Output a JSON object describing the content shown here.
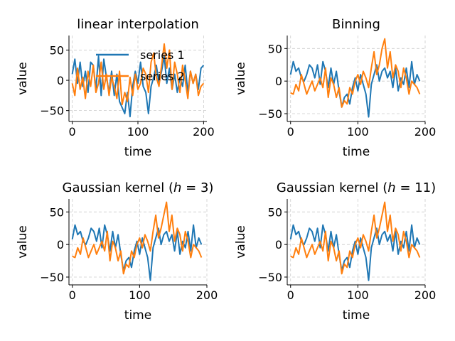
{
  "chart_data": [
    {
      "type": "line",
      "title": "linear interpolation",
      "xlabel": "time",
      "ylabel": "value",
      "xlim": [
        -5,
        205
      ],
      "ylim": [
        -68,
        74
      ],
      "xticks": [
        0,
        100,
        200
      ],
      "yticks": [
        -50,
        0,
        50
      ],
      "grid": true,
      "legend": "top-center",
      "colors": [
        "#1f77b4",
        "#ff7f0e"
      ],
      "series": [
        {
          "name": "series 1",
          "x": [
            0,
            4,
            8,
            12,
            16,
            20,
            24,
            28,
            32,
            36,
            40,
            44,
            48,
            52,
            56,
            60,
            64,
            68,
            72,
            76,
            80,
            84,
            88,
            92,
            96,
            100,
            104,
            108,
            112,
            116,
            120,
            124,
            128,
            132,
            136,
            140,
            144,
            148,
            152,
            156,
            160,
            164,
            168,
            172,
            176,
            180,
            184,
            188,
            192,
            196,
            200
          ],
          "values": [
            10,
            35,
            -5,
            30,
            -10,
            15,
            -20,
            30,
            25,
            -15,
            40,
            -25,
            35,
            5,
            -20,
            15,
            -25,
            10,
            -35,
            -45,
            -55,
            -20,
            -60,
            -10,
            15,
            -5,
            30,
            -10,
            -20,
            -55,
            -10,
            5,
            25,
            -5,
            15,
            40,
            -5,
            20,
            -15,
            10,
            -20,
            5,
            -10,
            25,
            -20,
            15,
            -5,
            10,
            -15,
            20,
            25
          ]
        },
        {
          "name": "series 2",
          "x": [
            0,
            4,
            8,
            12,
            16,
            20,
            24,
            28,
            32,
            36,
            40,
            44,
            48,
            52,
            56,
            60,
            64,
            68,
            72,
            76,
            80,
            84,
            88,
            92,
            96,
            100,
            104,
            108,
            112,
            116,
            120,
            124,
            128,
            132,
            136,
            140,
            144,
            148,
            152,
            156,
            160,
            164,
            168,
            172,
            176,
            180,
            184,
            188,
            192,
            196,
            200
          ],
          "values": [
            -5,
            -25,
            20,
            -15,
            5,
            -30,
            15,
            -10,
            25,
            -20,
            -5,
            30,
            -15,
            10,
            -25,
            5,
            -10,
            -30,
            15,
            -40,
            -20,
            -35,
            5,
            -25,
            10,
            -15,
            -5,
            20,
            10,
            -20,
            30,
            45,
            5,
            -10,
            25,
            60,
            20,
            50,
            -15,
            30,
            10,
            -20,
            25,
            0,
            -30,
            15,
            -5,
            10,
            -25,
            -10,
            -5
          ]
        }
      ]
    },
    {
      "type": "line",
      "title": "Binning",
      "xlabel": "time",
      "ylabel": "value",
      "xlim": [
        -5,
        200
      ],
      "ylim": [
        -62,
        70
      ],
      "xticks": [
        0,
        100,
        200
      ],
      "yticks": [
        -50,
        0,
        50
      ],
      "grid": true,
      "colors": [
        "#1f77b4",
        "#ff7f0e"
      ],
      "series": [
        {
          "x": [
            0,
            4,
            8,
            12,
            16,
            20,
            24,
            28,
            32,
            36,
            40,
            44,
            48,
            52,
            56,
            60,
            64,
            68,
            72,
            76,
            80,
            84,
            88,
            92,
            96,
            100,
            104,
            108,
            112,
            116,
            120,
            124,
            128,
            132,
            136,
            140,
            144,
            148,
            152,
            156,
            160,
            164,
            168,
            172,
            176,
            180,
            184,
            188,
            192
          ],
          "values": [
            10,
            30,
            15,
            20,
            5,
            0,
            10,
            25,
            20,
            5,
            25,
            -5,
            30,
            15,
            -10,
            20,
            -5,
            15,
            -15,
            -40,
            -25,
            -20,
            -35,
            -10,
            5,
            -15,
            10,
            -5,
            -20,
            -55,
            -5,
            10,
            25,
            0,
            15,
            20,
            5,
            15,
            -10,
            20,
            -15,
            5,
            -5,
            20,
            -10,
            30,
            -5,
            10,
            0
          ]
        },
        {
          "x": [
            0,
            4,
            8,
            12,
            16,
            20,
            24,
            28,
            32,
            36,
            40,
            44,
            48,
            52,
            56,
            60,
            64,
            68,
            72,
            76,
            80,
            84,
            88,
            92,
            96,
            100,
            104,
            108,
            112,
            116,
            120,
            124,
            128,
            132,
            136,
            140,
            144,
            148,
            152,
            156,
            160,
            164,
            168,
            172,
            176,
            180,
            184,
            188,
            192
          ],
          "values": [
            -18,
            -20,
            -5,
            -15,
            10,
            -5,
            -20,
            -10,
            0,
            -15,
            -5,
            5,
            -10,
            20,
            -25,
            5,
            -5,
            -25,
            -10,
            -40,
            -30,
            -35,
            -10,
            -20,
            0,
            10,
            -5,
            15,
            5,
            -10,
            20,
            45,
            10,
            25,
            50,
            65,
            20,
            45,
            5,
            25,
            15,
            -10,
            20,
            5,
            -20,
            0,
            -5,
            -10,
            -20
          ]
        }
      ]
    },
    {
      "type": "line",
      "title": "Gaussian kernel ($h=3$)",
      "xlabel": "time",
      "ylabel": "value",
      "xlim": [
        -5,
        200
      ],
      "ylim": [
        -62,
        70
      ],
      "xticks": [
        0,
        100,
        200
      ],
      "yticks": [
        -50,
        0,
        50
      ],
      "grid": true,
      "colors": [
        "#1f77b4",
        "#ff7f0e"
      ],
      "series": [
        {
          "x": [
            0,
            4,
            8,
            12,
            16,
            20,
            24,
            28,
            32,
            36,
            40,
            44,
            48,
            52,
            56,
            60,
            64,
            68,
            72,
            76,
            80,
            84,
            88,
            92,
            96,
            100,
            104,
            108,
            112,
            116,
            120,
            124,
            128,
            132,
            136,
            140,
            144,
            148,
            152,
            156,
            160,
            164,
            168,
            172,
            176,
            180,
            184,
            188,
            192
          ],
          "values": [
            8,
            30,
            15,
            20,
            5,
            0,
            10,
            25,
            20,
            5,
            25,
            -5,
            30,
            15,
            -10,
            20,
            -5,
            15,
            -15,
            -40,
            -25,
            -20,
            -35,
            -10,
            5,
            -15,
            10,
            -5,
            -20,
            -55,
            -5,
            10,
            25,
            0,
            15,
            20,
            5,
            15,
            -10,
            20,
            -15,
            5,
            -5,
            20,
            -10,
            30,
            -5,
            10,
            0
          ]
        },
        {
          "x": [
            0,
            4,
            8,
            12,
            16,
            20,
            24,
            28,
            32,
            36,
            40,
            44,
            48,
            52,
            56,
            60,
            64,
            68,
            72,
            76,
            80,
            84,
            88,
            92,
            96,
            100,
            104,
            108,
            112,
            116,
            120,
            124,
            128,
            132,
            136,
            140,
            144,
            148,
            152,
            156,
            160,
            164,
            168,
            172,
            176,
            180,
            184,
            188,
            192
          ],
          "values": [
            -18,
            -20,
            -5,
            -15,
            10,
            -5,
            -20,
            -10,
            0,
            -15,
            -5,
            5,
            -10,
            20,
            -25,
            5,
            -5,
            -25,
            -10,
            -45,
            -30,
            -35,
            -10,
            -20,
            0,
            10,
            -5,
            15,
            5,
            -10,
            20,
            45,
            10,
            25,
            45,
            65,
            20,
            45,
            5,
            25,
            15,
            -10,
            20,
            5,
            -20,
            0,
            -5,
            -10,
            -20
          ]
        }
      ]
    },
    {
      "type": "line",
      "title": "Gaussian kernel ($h=11$)",
      "xlabel": "time",
      "ylabel": "value",
      "xlim": [
        -5,
        200
      ],
      "ylim": [
        -62,
        70
      ],
      "xticks": [
        0,
        100,
        200
      ],
      "yticks": [
        -50,
        0,
        50
      ],
      "grid": true,
      "colors": [
        "#1f77b4",
        "#ff7f0e"
      ],
      "series": [
        {
          "x": [
            0,
            4,
            8,
            12,
            16,
            20,
            24,
            28,
            32,
            36,
            40,
            44,
            48,
            52,
            56,
            60,
            64,
            68,
            72,
            76,
            80,
            84,
            88,
            92,
            96,
            100,
            104,
            108,
            112,
            116,
            120,
            124,
            128,
            132,
            136,
            140,
            144,
            148,
            152,
            156,
            160,
            164,
            168,
            172,
            176,
            180,
            184,
            188,
            192
          ],
          "values": [
            8,
            30,
            15,
            20,
            5,
            0,
            10,
            25,
            20,
            5,
            25,
            -5,
            30,
            15,
            -10,
            20,
            -5,
            15,
            -15,
            -40,
            -25,
            -20,
            -35,
            -10,
            5,
            -15,
            10,
            -5,
            -20,
            -55,
            -5,
            10,
            25,
            0,
            15,
            20,
            5,
            15,
            -10,
            20,
            -15,
            5,
            -5,
            20,
            -10,
            30,
            -5,
            10,
            0
          ]
        },
        {
          "x": [
            0,
            4,
            8,
            12,
            16,
            20,
            24,
            28,
            32,
            36,
            40,
            44,
            48,
            52,
            56,
            60,
            64,
            68,
            72,
            76,
            80,
            84,
            88,
            92,
            96,
            100,
            104,
            108,
            112,
            116,
            120,
            124,
            128,
            132,
            136,
            140,
            144,
            148,
            152,
            156,
            160,
            164,
            168,
            172,
            176,
            180,
            184,
            188,
            192
          ],
          "values": [
            -18,
            -20,
            -5,
            -15,
            10,
            -5,
            -20,
            -10,
            0,
            -15,
            -5,
            5,
            -10,
            20,
            -25,
            5,
            -5,
            -25,
            -10,
            -45,
            -30,
            -35,
            -10,
            -20,
            0,
            10,
            -5,
            15,
            5,
            -10,
            20,
            45,
            10,
            25,
            45,
            65,
            20,
            45,
            5,
            25,
            15,
            -10,
            20,
            5,
            -20,
            0,
            -5,
            -10,
            -20
          ]
        }
      ]
    }
  ]
}
